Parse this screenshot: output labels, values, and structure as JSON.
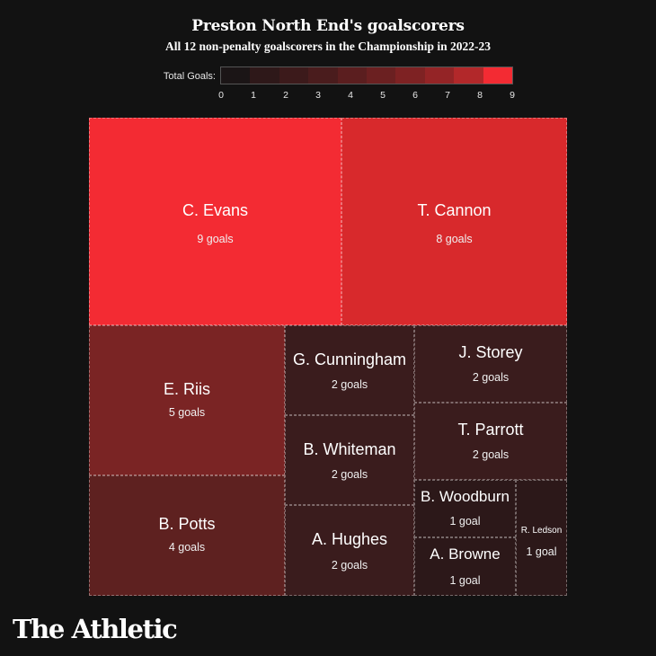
{
  "header": {
    "title": "Preston North End's goalscorers",
    "subtitle": "All 12 non-penalty goalscorers in the Championship in 2022-23"
  },
  "legend": {
    "label": "Total Goals:",
    "ticks": [
      "0",
      "1",
      "2",
      "3",
      "4",
      "5",
      "6",
      "7",
      "8",
      "9"
    ],
    "colors": [
      "#1b1516",
      "#2e1819",
      "#3c1a1b",
      "#4a1c1d",
      "#5b1e1f",
      "#6b2021",
      "#7e2223",
      "#942426",
      "#b2282a",
      "#f32b33"
    ]
  },
  "brand": "The Athletic",
  "chart_data": {
    "type": "treemap",
    "title": "Preston North End's goalscorers",
    "subtitle": "All 12 non-penalty goalscorers in the Championship in 2022-23",
    "color_scale": {
      "label": "Total Goals:",
      "min": 0,
      "max": 9
    },
    "items": [
      {
        "name": "C. Evans",
        "value": 9,
        "label": "9 goals",
        "color": "#f32b33"
      },
      {
        "name": "T. Cannon",
        "value": 8,
        "label": "8 goals",
        "color": "#d8292c"
      },
      {
        "name": "E. Riis",
        "value": 5,
        "label": "5 goals",
        "color": "#7a2424"
      },
      {
        "name": "B. Potts",
        "value": 4,
        "label": "4 goals",
        "color": "#5e2120"
      },
      {
        "name": "G. Cunningham",
        "value": 2,
        "label": "2 goals",
        "color": "#3a1c1d"
      },
      {
        "name": "B. Whiteman",
        "value": 2,
        "label": "2 goals",
        "color": "#3a1c1d"
      },
      {
        "name": "A. Hughes",
        "value": 2,
        "label": "2 goals",
        "color": "#3a1c1d"
      },
      {
        "name": "J. Storey",
        "value": 2,
        "label": "2 goals",
        "color": "#3a1c1d"
      },
      {
        "name": "T. Parrott",
        "value": 2,
        "label": "2 goals",
        "color": "#3a1c1d"
      },
      {
        "name": "B. Woodburn",
        "value": 1,
        "label": "1 goal",
        "color": "#2c1819"
      },
      {
        "name": "A. Browne",
        "value": 1,
        "label": "1 goal",
        "color": "#2c1819"
      },
      {
        "name": "R. Ledson",
        "value": 1,
        "label": "1 goal",
        "color": "#2c1819"
      }
    ]
  }
}
